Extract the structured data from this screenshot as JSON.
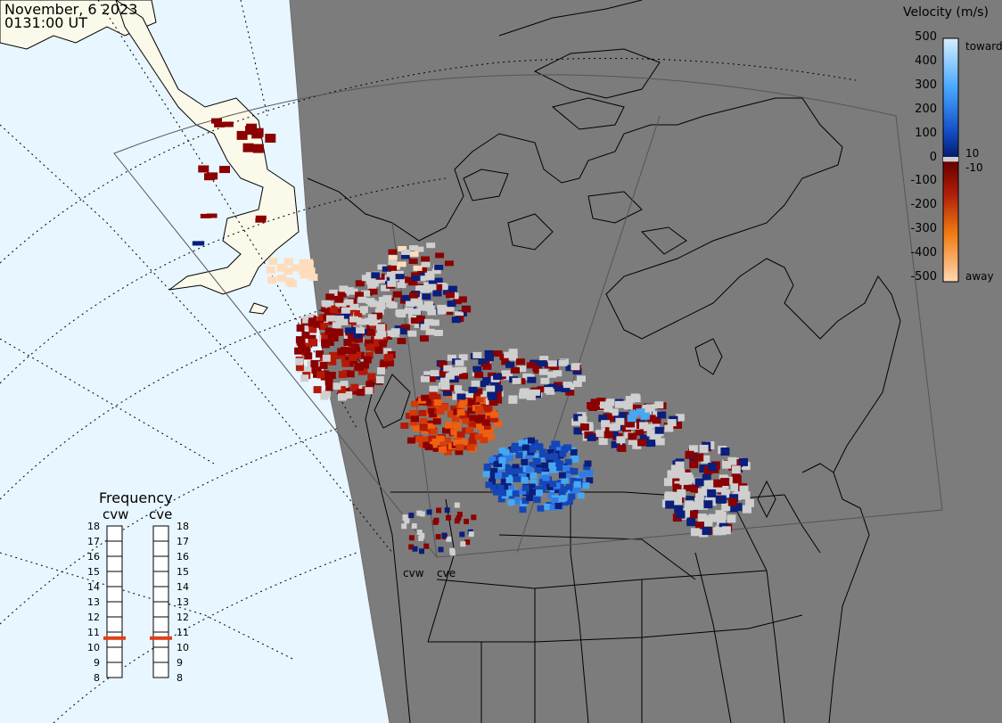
{
  "header": {
    "date": "November, 6 2023",
    "time": "0131:00 UT"
  },
  "legend": {
    "title": "Velocity (m/s)",
    "ticks": [
      "500",
      "400",
      "300",
      "200",
      "100",
      "0",
      "-100",
      "-200",
      "-300",
      "-400",
      "-500"
    ],
    "toward_label": "toward",
    "away_label": "away",
    "plus_ten": "10",
    "minus_ten": "-10",
    "colors": {
      "toward_500": "#d6efff",
      "toward_300": "#2f8cf0",
      "toward_100": "#0a2e8a",
      "zero": "#ffffff",
      "away_100": "#8b0000",
      "away_300": "#e65c00",
      "away_500": "#ffd8b0"
    }
  },
  "frequency": {
    "title": "Frequency",
    "radars": [
      "cvw",
      "cve"
    ],
    "ticks": [
      "18",
      "17",
      "16",
      "15",
      "14",
      "13",
      "12",
      "11",
      "10",
      "9",
      "8"
    ],
    "cvw_mhz": 10.6,
    "cve_mhz": 10.6,
    "marker_color": "#e0401a"
  },
  "map": {
    "radar_labels": [
      "cvw",
      "cve"
    ],
    "ocean_color": "#e8f6ff",
    "night_color": "#7c7c7c",
    "land_day_color": "#fbf9e9"
  }
}
